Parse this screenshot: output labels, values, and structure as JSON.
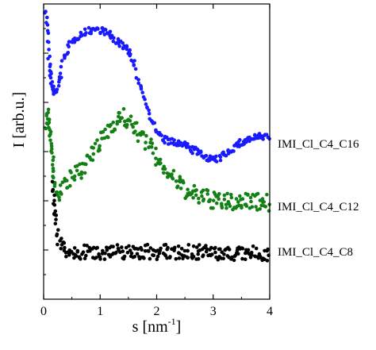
{
  "chart_data": {
    "type": "scatter",
    "xlabel_main": "s [nm",
    "xlabel_sup": "-1",
    "xlabel_end": "]",
    "ylabel": "I [arb.u.]",
    "xlim": [
      0,
      4
    ],
    "ylim": [
      0,
      1
    ],
    "x_ticks": [
      "0",
      "1",
      "2",
      "3",
      "4"
    ],
    "y_tick_labels_shown": false,
    "grid": false,
    "series": [
      {
        "name": "IMI_Cl_C4_C16",
        "color": "#1a1aff",
        "points": [
          [
            0.04,
            0.98
          ],
          [
            0.06,
            0.93
          ],
          [
            0.08,
            0.86
          ],
          [
            0.1,
            0.8
          ],
          [
            0.12,
            0.76
          ],
          [
            0.14,
            0.73
          ],
          [
            0.16,
            0.71
          ],
          [
            0.18,
            0.7
          ],
          [
            0.2,
            0.7
          ],
          [
            0.25,
            0.72
          ],
          [
            0.3,
            0.76
          ],
          [
            0.35,
            0.81
          ],
          [
            0.4,
            0.84
          ],
          [
            0.5,
            0.87
          ],
          [
            0.6,
            0.89
          ],
          [
            0.7,
            0.9
          ],
          [
            0.8,
            0.91
          ],
          [
            0.9,
            0.915
          ],
          [
            1.0,
            0.912
          ],
          [
            1.1,
            0.905
          ],
          [
            1.2,
            0.89
          ],
          [
            1.3,
            0.87
          ],
          [
            1.4,
            0.86
          ],
          [
            1.45,
            0.855
          ],
          [
            1.5,
            0.85
          ],
          [
            1.55,
            0.82
          ],
          [
            1.6,
            0.79
          ],
          [
            1.7,
            0.73
          ],
          [
            1.8,
            0.67
          ],
          [
            1.9,
            0.61
          ],
          [
            2.0,
            0.565
          ],
          [
            2.1,
            0.545
          ],
          [
            2.2,
            0.535
          ],
          [
            2.3,
            0.53
          ],
          [
            2.4,
            0.525
          ],
          [
            2.5,
            0.52
          ],
          [
            2.6,
            0.51
          ],
          [
            2.7,
            0.5
          ],
          [
            2.8,
            0.49
          ],
          [
            2.9,
            0.48
          ],
          [
            3.0,
            0.47
          ],
          [
            3.1,
            0.475
          ],
          [
            3.2,
            0.49
          ],
          [
            3.3,
            0.505
          ],
          [
            3.4,
            0.52
          ],
          [
            3.5,
            0.53
          ],
          [
            3.6,
            0.54
          ],
          [
            3.7,
            0.545
          ],
          [
            3.8,
            0.55
          ],
          [
            3.9,
            0.55
          ],
          [
            4.0,
            0.55
          ]
        ]
      },
      {
        "name": "IMI_Cl_C4_C12",
        "color": "#138013",
        "points": [
          [
            0.04,
            0.6
          ],
          [
            0.06,
            0.62
          ],
          [
            0.08,
            0.6
          ],
          [
            0.1,
            0.58
          ],
          [
            0.12,
            0.54
          ],
          [
            0.14,
            0.5
          ],
          [
            0.16,
            0.46
          ],
          [
            0.18,
            0.42
          ],
          [
            0.2,
            0.38
          ],
          [
            0.25,
            0.36
          ],
          [
            0.3,
            0.37
          ],
          [
            0.4,
            0.39
          ],
          [
            0.5,
            0.41
          ],
          [
            0.6,
            0.43
          ],
          [
            0.7,
            0.45
          ],
          [
            0.8,
            0.47
          ],
          [
            0.9,
            0.5
          ],
          [
            1.0,
            0.53
          ],
          [
            1.1,
            0.56
          ],
          [
            1.2,
            0.59
          ],
          [
            1.3,
            0.61
          ],
          [
            1.35,
            0.62
          ],
          [
            1.4,
            0.615
          ],
          [
            1.5,
            0.6
          ],
          [
            1.6,
            0.58
          ],
          [
            1.7,
            0.56
          ],
          [
            1.8,
            0.54
          ],
          [
            1.9,
            0.51
          ],
          [
            2.0,
            0.48
          ],
          [
            2.1,
            0.45
          ],
          [
            2.2,
            0.43
          ],
          [
            2.3,
            0.41
          ],
          [
            2.4,
            0.39
          ],
          [
            2.5,
            0.37
          ],
          [
            2.6,
            0.36
          ],
          [
            2.7,
            0.35
          ],
          [
            2.8,
            0.345
          ],
          [
            2.9,
            0.34
          ],
          [
            3.0,
            0.335
          ],
          [
            3.1,
            0.33
          ],
          [
            3.2,
            0.33
          ],
          [
            3.3,
            0.33
          ],
          [
            3.4,
            0.33
          ],
          [
            3.5,
            0.33
          ],
          [
            3.6,
            0.335
          ],
          [
            3.7,
            0.34
          ],
          [
            3.8,
            0.33
          ],
          [
            3.9,
            0.33
          ],
          [
            4.0,
            0.32
          ]
        ]
      },
      {
        "name": "IMI_Cl_C4_C8",
        "color": "#000000",
        "points": [
          [
            0.15,
            0.4
          ],
          [
            0.18,
            0.35
          ],
          [
            0.2,
            0.3
          ],
          [
            0.22,
            0.25
          ],
          [
            0.25,
            0.21
          ],
          [
            0.3,
            0.19
          ],
          [
            0.35,
            0.17
          ],
          [
            0.4,
            0.16
          ],
          [
            0.5,
            0.155
          ],
          [
            0.6,
            0.155
          ],
          [
            0.8,
            0.16
          ],
          [
            1.0,
            0.16
          ],
          [
            1.2,
            0.16
          ],
          [
            1.4,
            0.16
          ],
          [
            1.6,
            0.16
          ],
          [
            1.8,
            0.16
          ],
          [
            2.0,
            0.16
          ],
          [
            2.2,
            0.16
          ],
          [
            2.4,
            0.16
          ],
          [
            2.6,
            0.16
          ],
          [
            2.8,
            0.16
          ],
          [
            3.0,
            0.155
          ],
          [
            3.2,
            0.155
          ],
          [
            3.4,
            0.155
          ],
          [
            3.6,
            0.155
          ],
          [
            3.8,
            0.155
          ],
          [
            4.0,
            0.155
          ]
        ]
      }
    ]
  }
}
